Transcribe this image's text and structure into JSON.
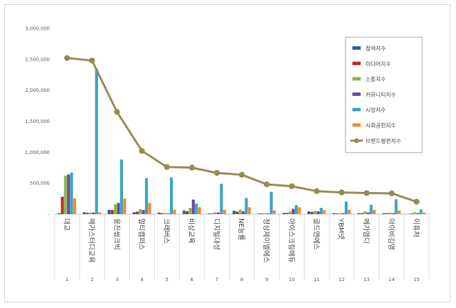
{
  "chart_data": {
    "type": "bar",
    "title": "",
    "xlabel": "",
    "ylabel": "",
    "ylim": [
      0,
      3000000
    ],
    "yticks": [
      0,
      500000,
      1000000,
      1500000,
      2000000,
      2500000,
      3000000
    ],
    "ytick_labels": [
      "-",
      "500,000",
      "1,000,000",
      "1,500,000",
      "2,000,000",
      "2,500,000",
      "3,000,000"
    ],
    "grid": false,
    "legend_position": "top-right",
    "categories": [
      "대교",
      "메가스터디교육",
      "웅진씽크빅",
      "멀티캠퍼스",
      "크레버스",
      "비상교육",
      "디지털대성",
      "NE능률",
      "정상제이엘에스",
      "아이스크림에듀",
      "골드앤에스",
      "YBM넷",
      "메가엠디",
      "아이비김영",
      "이퓨처"
    ],
    "indices": [
      "1",
      "2",
      "3",
      "4",
      "5",
      "6",
      "7",
      "8",
      "9",
      "10",
      "11",
      "12",
      "13",
      "14",
      "15"
    ],
    "series": [
      {
        "name": "참여지수",
        "type": "bar",
        "color": "#2e5da8",
        "values": [
          15000,
          30000,
          70000,
          30000,
          25000,
          60000,
          10000,
          55000,
          10000,
          20000,
          45000,
          15000,
          15000,
          15000,
          5000
        ]
      },
      {
        "name": "미디어지수",
        "type": "bar",
        "color": "#b3302c",
        "values": [
          280000,
          20000,
          65000,
          40000,
          15000,
          45000,
          10000,
          40000,
          10000,
          20000,
          35000,
          10000,
          15000,
          15000,
          10000
        ]
      },
      {
        "name": "소통지수",
        "type": "bar",
        "color": "#8db542",
        "values": [
          620000,
          25000,
          160000,
          80000,
          15000,
          100000,
          30000,
          70000,
          15000,
          40000,
          50000,
          15000,
          45000,
          25000,
          30000
        ]
      },
      {
        "name": "커뮤니티지수",
        "type": "bar",
        "color": "#6b4a9e",
        "values": [
          640000,
          25000,
          180000,
          65000,
          10000,
          235000,
          25000,
          45000,
          10000,
          85000,
          45000,
          15000,
          25000,
          15000,
          15000
        ]
      },
      {
        "name": "시장지수",
        "type": "bar",
        "color": "#3aa5c4",
        "values": [
          670000,
          2350000,
          880000,
          580000,
          590000,
          170000,
          490000,
          260000,
          360000,
          145000,
          100000,
          200000,
          150000,
          240000,
          75000
        ]
      },
      {
        "name": "사회공헌지수",
        "type": "bar",
        "color": "#f08c2e",
        "values": [
          255000,
          30000,
          250000,
          180000,
          70000,
          110000,
          70000,
          110000,
          60000,
          110000,
          65000,
          70000,
          70000,
          60000,
          25000
        ]
      },
      {
        "name": "브랜드평판지수",
        "type": "line",
        "color": "#948a54",
        "values": [
          2520000,
          2480000,
          1650000,
          1020000,
          760000,
          750000,
          665000,
          635000,
          480000,
          450000,
          370000,
          350000,
          340000,
          335000,
          200000
        ]
      }
    ]
  }
}
